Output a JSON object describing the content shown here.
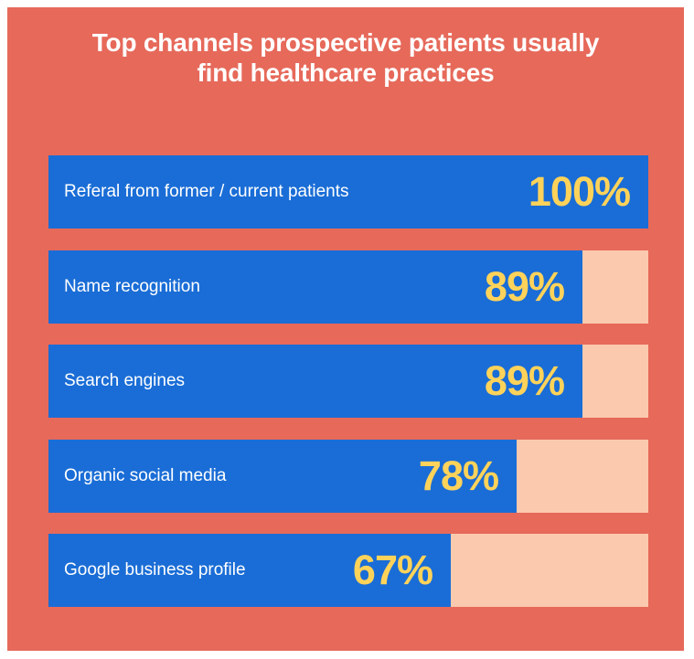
{
  "chart_data": {
    "type": "bar",
    "orientation": "horizontal",
    "title": "Top channels prospective patients usually find healthcare practices",
    "categories": [
      "Referal from former / current patients",
      "Name recognition",
      "Search engines",
      "Organic social media",
      "Google business profile"
    ],
    "values": [
      100,
      89,
      89,
      78,
      67
    ],
    "value_labels": [
      "100%",
      "89%",
      "89%",
      "78%",
      "67%"
    ],
    "xlim": [
      0,
      100
    ],
    "unit": "%"
  },
  "colors": {
    "background": "#e6695a",
    "bar": "#1a6dd6",
    "track": "#fbc9ad",
    "value": "#ffd35a",
    "label": "#ffffff"
  }
}
